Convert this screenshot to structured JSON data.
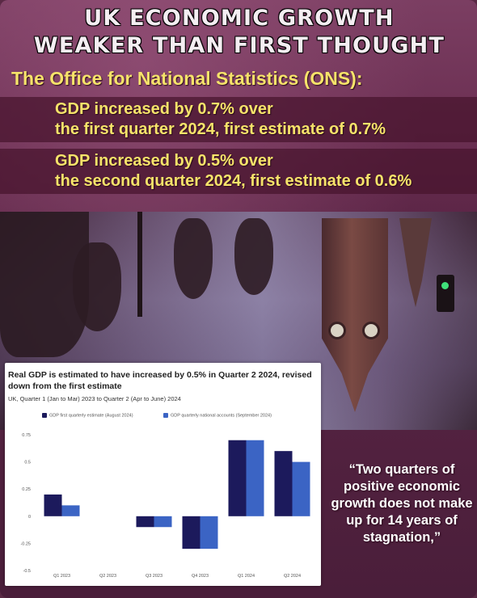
{
  "headline": {
    "line1": "UK ECONOMIC GROWTH",
    "line2": "WEAKER THAN FIRST THOUGHT"
  },
  "subhead": "The Office for National Statistics (ONS):",
  "facts": [
    {
      "line1": "GDP increased by 0.7% over",
      "line2": "the first quarter 2024, first estimate of 0.7%"
    },
    {
      "line1": "GDP increased by 0.5% over",
      "line2": "the second quarter 2024, first estimate of 0.6%"
    }
  ],
  "quote": "“Two quarters of positive economic growth does not make up for 14 years of stagnation,”",
  "colors": {
    "series_1": "#1c1a5c",
    "series_2": "#3b64c4",
    "headline_yellow": "#f6e36a"
  },
  "chart_data": {
    "type": "bar",
    "title": "Real GDP is estimated to have increased by 0.5% in Quarter 2 2024, revised down from the first estimate",
    "subtitle": "UK, Quarter 1 (Jan to Mar) 2023 to Quarter 2 (Apr to June) 2024",
    "categories": [
      "Q1 2023",
      "Q2 2023",
      "Q3 2023",
      "Q4 2023",
      "Q1 2024",
      "Q2 2024"
    ],
    "series": [
      {
        "name": "GDP first quarterly estimate (August 2024)",
        "values": [
          0.2,
          0.0,
          -0.1,
          -0.3,
          0.7,
          0.6
        ]
      },
      {
        "name": "GDP quarterly national accounts (September 2024)",
        "values": [
          0.1,
          0.0,
          -0.1,
          -0.3,
          0.7,
          0.5
        ]
      }
    ],
    "yticks": [
      "0.75",
      "0.5",
      "0.25",
      "0",
      "-0.25",
      "-0.5"
    ],
    "ylim": [
      -0.5,
      0.75
    ],
    "grid": false,
    "legend_position": "top-left"
  }
}
